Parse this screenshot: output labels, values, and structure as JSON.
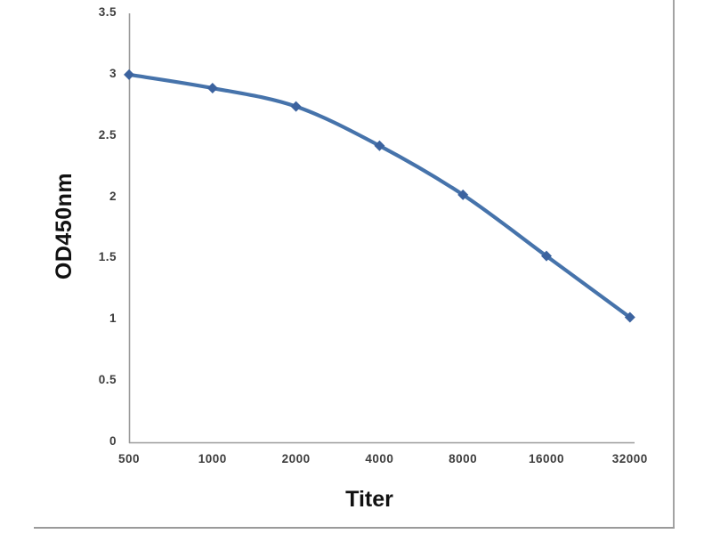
{
  "chart_data": {
    "type": "line",
    "title": "",
    "xlabel": "Titer",
    "ylabel": "OD450nm",
    "categories": [
      "500",
      "1000",
      "2000",
      "4000",
      "8000",
      "16000",
      "32000"
    ],
    "series": [
      {
        "name": "OD450nm",
        "values": [
          3.0,
          2.89,
          2.74,
          2.42,
          2.02,
          1.52,
          1.02
        ]
      }
    ],
    "ylim": [
      0,
      3.5
    ],
    "ytick_step": 0.5,
    "grid": "off",
    "legend": "none",
    "line_color": "#4673ab",
    "marker_color": "#3c639f",
    "marker_shape": "diamond",
    "axis_color": "#9b9b9b",
    "tick_label_color": "#3d3d3d",
    "frame_border_color": "#a3a3a3",
    "background_color": "#ffffff"
  }
}
